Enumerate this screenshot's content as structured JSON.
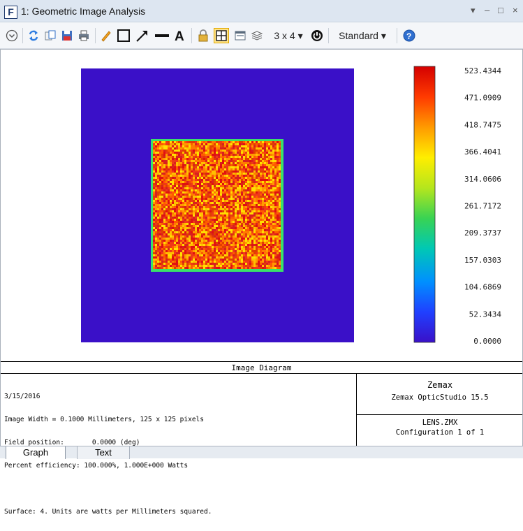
{
  "window": {
    "app_letter": "F",
    "title": "1: Geometric Image Analysis",
    "controls": [
      "▾",
      "–",
      "□",
      "×"
    ]
  },
  "toolbar": {
    "layout_label": "3 x 4 ▾",
    "style_label": "Standard ▾",
    "icons": [
      "chevron-circle-icon",
      "refresh-icon",
      "copy-icon",
      "save-icon",
      "print-icon",
      "pencil-icon",
      "rectangle-icon",
      "arrow-icon",
      "line-icon",
      "text-icon",
      "lock-icon",
      "grid-icon",
      "window-icon",
      "layers-icon",
      "power-icon",
      "help-icon"
    ]
  },
  "plot": {
    "colors": {
      "background": "#3a10c8",
      "square_border": "#3ae06a"
    },
    "colorbar_labels": [
      "523.4344",
      "471.0909",
      "418.7475",
      "366.4041",
      "314.0606",
      "261.7172",
      "209.3737",
      "157.0303",
      "104.6869",
      "52.3434",
      "0.0000"
    ],
    "colorbar_stops": [
      "#d40000",
      "#ff3a00",
      "#ff9a00",
      "#ffee00",
      "#b5e61d",
      "#39d353",
      "#00c8b4",
      "#0090ff",
      "#2040ff",
      "#3a10c8"
    ]
  },
  "footer": {
    "diagram_title": "Image Diagram",
    "info_lines": [
      "3/15/2016",
      "Image Width = 0.1000 Millimeters, 125 x 125 pixels",
      "Field position:       0.0000 (deg)",
      "Percent efficiency: 100.000%, 1.000E+000 Watts",
      "",
      "Surface: 4. Units are watts per Millimeters squared."
    ],
    "company": "Zemax",
    "product": "Zemax OpticStudio 15.5",
    "file": "LENS.ZMX",
    "config": "Configuration 1 of 1"
  },
  "tabs": [
    {
      "label": "Graph",
      "active": true
    },
    {
      "label": "Text",
      "active": false
    }
  ]
}
